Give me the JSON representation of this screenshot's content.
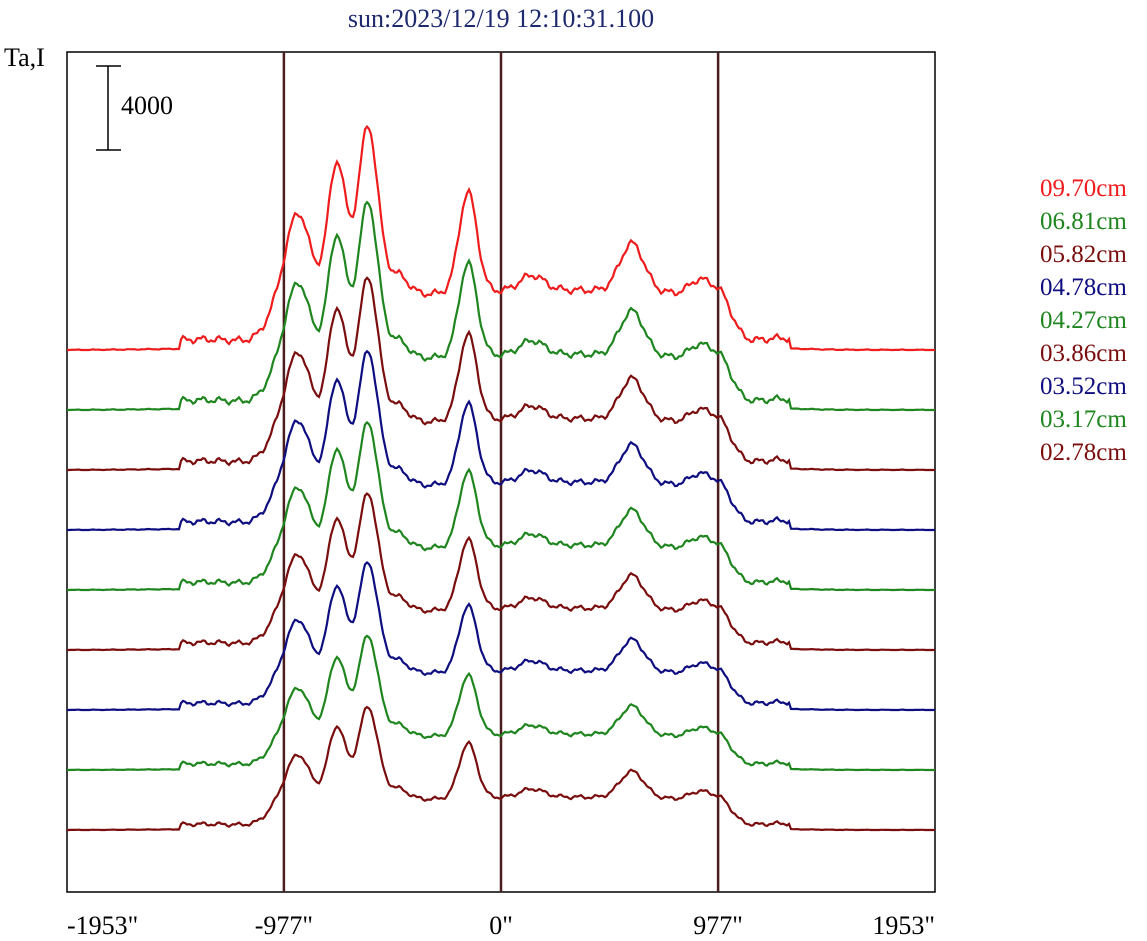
{
  "chart_data": {
    "type": "line",
    "title": "sun:2023/12/19 12:10:31.100",
    "ylabel": "Ta,I",
    "scale_bar_label": "4000",
    "x_tick_labels": [
      "-1953\"",
      "-977\"",
      "0\"",
      "977\"",
      "1953\""
    ],
    "x_ticks": [
      -1953,
      -977,
      0,
      977,
      1953
    ],
    "xlim": [
      -1953,
      1953
    ],
    "vertical_lines": [
      -977,
      0,
      977
    ],
    "vertical_line_color": "#4a1e1e",
    "grid": false,
    "legend_position": "right",
    "series": [
      {
        "name": "09.70cm",
        "color": "#ee1c1c",
        "base": 350,
        "scale": 1.0
      },
      {
        "name": "06.81cm",
        "color": "#1f861f",
        "base": 410,
        "scale": 0.93
      },
      {
        "name": "05.82cm",
        "color": "#7a0e0e",
        "base": 470,
        "scale": 0.86
      },
      {
        "name": "04.78cm",
        "color": "#0e0e80",
        "base": 530,
        "scale": 0.8
      },
      {
        "name": "04.27cm",
        "color": "#1f861f",
        "base": 590,
        "scale": 0.75
      },
      {
        "name": "03.86cm",
        "color": "#7a0e0e",
        "base": 650,
        "scale": 0.7
      },
      {
        "name": "03.52cm",
        "color": "#0e0e80",
        "base": 710,
        "scale": 0.66
      },
      {
        "name": "03.17cm",
        "color": "#1f861f",
        "base": 770,
        "scale": 0.6
      },
      {
        "name": "02.78cm",
        "color": "#7a0e0e",
        "base": 830,
        "scale": 0.55
      }
    ]
  }
}
